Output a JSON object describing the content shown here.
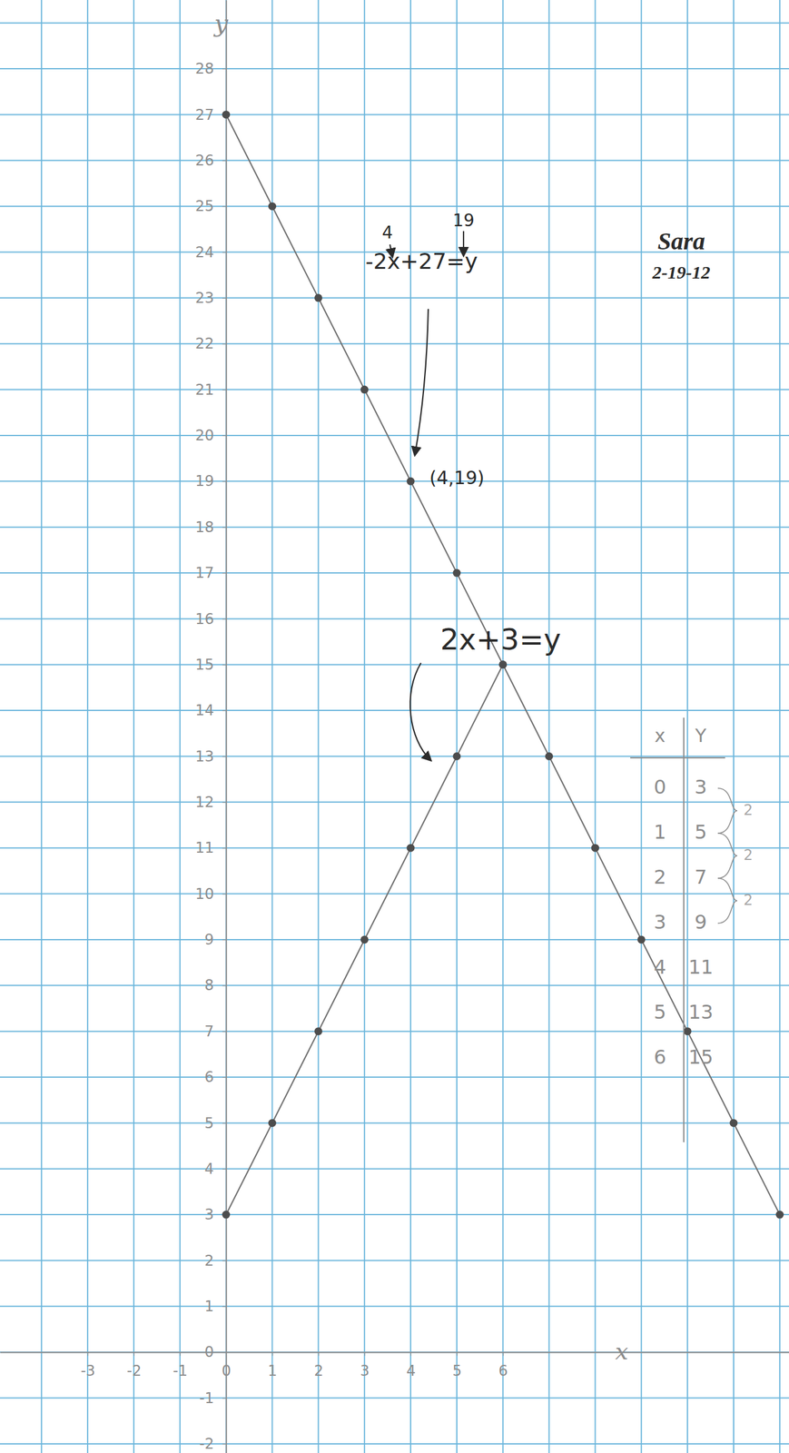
{
  "chart_data": {
    "type": "line",
    "x_label": "x",
    "y_label": "y",
    "series": [
      {
        "name": "-2x+27=y",
        "color": "#6f6f6f",
        "marker": "circle",
        "line_style": "solid",
        "x": [
          0,
          1,
          2,
          3,
          4,
          5,
          6,
          7,
          8,
          9,
          10,
          11,
          12
        ],
        "values": [
          27,
          25,
          23,
          21,
          19,
          17,
          15,
          13,
          11,
          9,
          7,
          5,
          3
        ]
      },
      {
        "name": "2x+3=y",
        "color": "#6f6f6f",
        "marker": "circle",
        "line_style": "solid",
        "x": [
          0,
          1,
          2,
          3,
          4,
          5,
          6
        ],
        "values": [
          3,
          5,
          7,
          9,
          11,
          13,
          15
        ]
      }
    ],
    "xlim": [
      -4.9,
      12.2
    ],
    "ylim": [
      -2.2,
      29.5
    ],
    "xticks": [
      -3,
      -2,
      -1,
      0,
      1,
      2,
      3,
      4,
      5,
      6
    ],
    "yticks": [
      -2,
      -1,
      0,
      1,
      2,
      3,
      4,
      5,
      6,
      7,
      8,
      9,
      10,
      11,
      12,
      13,
      14,
      15,
      16,
      17,
      18,
      19,
      20,
      21,
      22,
      23,
      24,
      25,
      26,
      27,
      28
    ],
    "grid": true,
    "annotations": [
      "4",
      "19",
      "(4,19)",
      "Sara",
      "2-19-12"
    ],
    "table": {
      "header": [
        "x",
        "Y"
      ],
      "rows": [
        [
          0,
          3
        ],
        [
          1,
          5
        ],
        [
          2,
          7
        ],
        [
          3,
          9
        ],
        [
          4,
          11
        ],
        [
          5,
          13
        ],
        [
          6,
          15
        ]
      ],
      "differences": [
        2,
        2,
        2
      ]
    }
  }
}
